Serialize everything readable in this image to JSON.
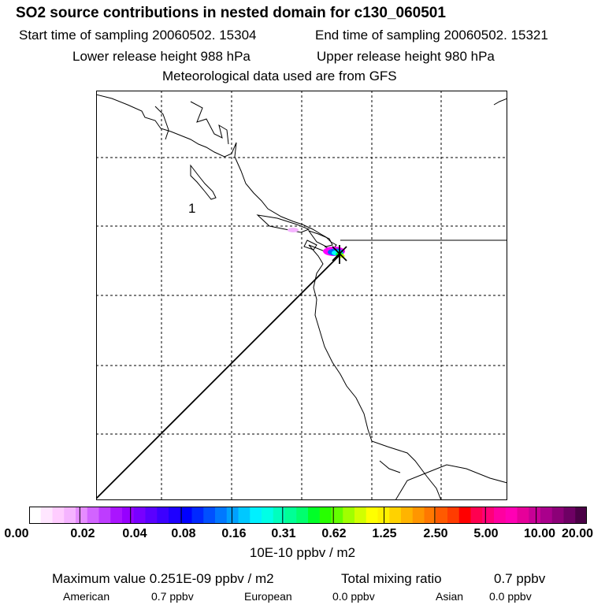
{
  "header": {
    "title": "SO2 source contributions in nested domain for c130_060501",
    "start_time": "Start time of sampling 20060502. 15304",
    "end_time": "End time of sampling 20060502. 15321",
    "lower_height": "Lower release height  988 hPa",
    "upper_height": "Upper release height  980 hPa",
    "met_data": "Meteorological data used are from GFS"
  },
  "map": {
    "region_label": "1",
    "plume_colors": [
      "#ff00ff",
      "#0060ff",
      "#00ffff",
      "#00ff40",
      "#c8ff00"
    ],
    "trajectory_color": "#000000"
  },
  "colorbar": {
    "colors": [
      "#ffffff",
      "#ffe6ff",
      "#ffcdff",
      "#f5b4ff",
      "#e68cff",
      "#d264ff",
      "#be3cff",
      "#aa14ff",
      "#9600ff",
      "#7800ff",
      "#5a00ff",
      "#3c00ff",
      "#1e00ff",
      "#0000ff",
      "#0028ff",
      "#0050ff",
      "#0078ff",
      "#00a0ff",
      "#00c8ff",
      "#00f0ff",
      "#00ffe6",
      "#00ffbe",
      "#00ff96",
      "#00ff6e",
      "#00ff28",
      "#28ff00",
      "#64ff00",
      "#a0ff00",
      "#d2ff00",
      "#ffff00",
      "#fff000",
      "#ffd200",
      "#ffb400",
      "#ff9600",
      "#ff7800",
      "#ff5a00",
      "#ff3c00",
      "#ff0000",
      "#ff0050",
      "#ff0078",
      "#ff00a0",
      "#ff00b4",
      "#e6009a",
      "#c80096",
      "#aa008c",
      "#8c0078",
      "#6e0064",
      "#4b0046"
    ],
    "ticks": [
      "0.00",
      "0.02",
      "0.04",
      "0.08",
      "0.16",
      "0.31",
      "0.62",
      "1.25",
      "2.50",
      "5.00",
      "10.00",
      "20.00"
    ],
    "units": "10E-10 ppbv / m2"
  },
  "stats": {
    "max_value": "Maximum value  0.251E-09 ppbv / m2",
    "total_mixing": "Total mixing ratio",
    "total_value": "0.7 ppbv",
    "american_label": "American",
    "american_value": "0.7 ppbv",
    "european_label": "European",
    "european_value": "0.0 ppbv",
    "asian_label": "Asian",
    "asian_value": "0.0 ppbv"
  }
}
